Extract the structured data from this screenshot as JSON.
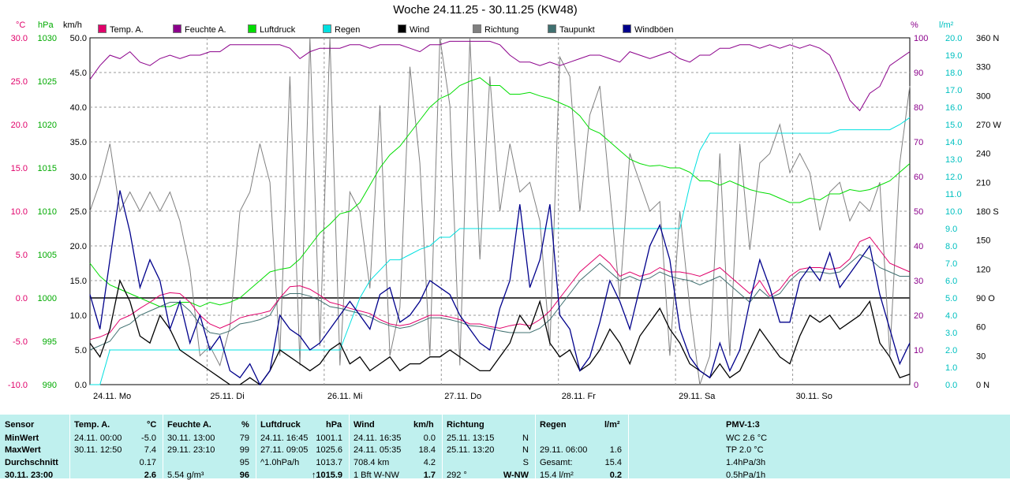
{
  "title": "Woche 24.11.25 - 30.11.25 (KW48)",
  "legend": [
    {
      "label": "Temp. A.",
      "color": "#e0006a"
    },
    {
      "label": "Feuchte A.",
      "color": "#8b008b"
    },
    {
      "label": "Luftdruck",
      "color": "#00dd00"
    },
    {
      "label": "Regen",
      "color": "#00e0e0"
    },
    {
      "label": "Wind",
      "color": "#000000"
    },
    {
      "label": "Richtung",
      "color": "#808080"
    },
    {
      "label": "Taupunkt",
      "color": "#407070"
    },
    {
      "label": "Windböen",
      "color": "#00008b"
    }
  ],
  "units": {
    "temp": "°C",
    "press": "hPa",
    "wind": "km/h",
    "hum": "%",
    "rain": "l/m²"
  },
  "chart_data": {
    "type": "line",
    "x_labels": [
      "24.11. Mo",
      "25.11. Di",
      "26.11. Mi",
      "27.11. Do",
      "28.11. Fr",
      "29.11. Sa",
      "30.11. So"
    ],
    "axes": {
      "temp": {
        "label": "°C",
        "range": [
          -10,
          30
        ],
        "ticks": [
          "30.0",
          "25.0",
          "20.0",
          "15.0",
          "10.0",
          "5.0",
          "0.0",
          "-5.0",
          "-10.0"
        ],
        "color": "#e0006a"
      },
      "press": {
        "label": "hPa",
        "range": [
          990,
          1030
        ],
        "ticks": [
          "1030",
          "1025",
          "1020",
          "1015",
          "1010",
          "1005",
          "1000",
          "995",
          "990"
        ],
        "color": "#00aa00"
      },
      "wind": {
        "label": "km/h",
        "range": [
          0,
          50
        ],
        "ticks": [
          "50.0",
          "45.0",
          "40.0",
          "35.0",
          "30.0",
          "25.0",
          "20.0",
          "15.0",
          "10.0",
          "5.0",
          "0.0"
        ],
        "color": "#000000"
      },
      "hum": {
        "label": "%",
        "range": [
          0,
          100
        ],
        "ticks": [
          "100",
          "90",
          "80",
          "70",
          "60",
          "50",
          "40",
          "30",
          "20",
          "10",
          "0"
        ],
        "color": "#8b008b"
      },
      "rain": {
        "label": "l/m²",
        "range": [
          0,
          20
        ],
        "ticks": [
          "20.0",
          "19.0",
          "18.0",
          "17.0",
          "16.0",
          "15.0",
          "14.0",
          "13.0",
          "12.0",
          "11.0",
          "10.0",
          "9.0",
          "8.0",
          "7.0",
          "6.0",
          "5.0",
          "4.0",
          "3.0",
          "2.0",
          "1.0",
          "0.0"
        ],
        "color": "#00c0c0"
      },
      "dir": {
        "range": [
          0,
          360
        ],
        "ticks": [
          "360 N",
          "330",
          "300",
          "270 W",
          "240",
          "210",
          "180 S",
          "150",
          "120",
          "90 O",
          "60",
          "30",
          "0 N"
        ]
      }
    },
    "series": [
      {
        "name": "Temp. A.",
        "axis": "temp",
        "color": "#e0006a",
        "values": [
          -4.8,
          -4.5,
          -4,
          -2.5,
          -2,
          -1.2,
          -0.5,
          0.3,
          0.6,
          0.5,
          -0.5,
          -2,
          -3,
          -3.5,
          -3,
          -2.3,
          -2,
          -1.8,
          -1.5,
          0,
          1.3,
          1.4,
          1,
          0.3,
          -0.5,
          -0.8,
          -1.2,
          -1.5,
          -1.8,
          -2.5,
          -3,
          -3.2,
          -3,
          -2.5,
          -2,
          -2,
          -2.2,
          -2.5,
          -3,
          -3,
          -3.3,
          -3.5,
          -3.2,
          -3,
          -3.2,
          -2.5,
          -1.5,
          0,
          1.5,
          3,
          4,
          5,
          4,
          2.5,
          3,
          2.5,
          2.8,
          3.5,
          3,
          3,
          2.8,
          2.5,
          3,
          3.5,
          2.5,
          1.5,
          0.5,
          2,
          0.2,
          1,
          2.5,
          3.3,
          3.5,
          3.5,
          3.3,
          3.5,
          4.5,
          6.5,
          7,
          5.5,
          4,
          3.5,
          3
        ]
      },
      {
        "name": "Feuchte A.",
        "axis": "hum",
        "color": "#8b008b",
        "values": [
          88,
          92,
          95,
          94,
          96,
          93,
          92,
          94,
          95,
          94,
          95,
          95,
          96,
          96,
          98,
          98,
          98,
          98,
          98,
          98,
          97,
          94,
          96,
          97,
          97,
          97,
          98,
          98,
          97,
          98,
          98,
          98,
          97,
          96,
          98,
          98,
          99,
          99,
          99,
          99,
          99,
          98,
          95,
          93,
          93,
          92,
          93,
          92,
          93,
          94,
          95,
          95,
          94,
          93,
          96,
          95,
          94,
          95,
          96,
          94,
          93,
          95,
          95,
          97,
          97,
          98,
          98,
          97,
          98,
          97,
          98,
          97,
          98,
          97,
          95,
          89,
          82,
          79,
          84,
          86,
          92,
          94,
          96
        ]
      },
      {
        "name": "Luftdruck",
        "axis": "press",
        "color": "#00dd00",
        "values": [
          1004,
          1002.5,
          1001.5,
          1001,
          1000.5,
          1000,
          999.5,
          999,
          999,
          999.5,
          999.5,
          999,
          999.5,
          999.2,
          999.5,
          1000,
          1001,
          1002,
          1003,
          1003.3,
          1003.5,
          1004.5,
          1006,
          1007.5,
          1008.5,
          1009.7,
          1010,
          1011,
          1013,
          1015,
          1016.5,
          1017.5,
          1019,
          1020.5,
          1022,
          1023,
          1023.5,
          1024.5,
          1025,
          1025.4,
          1024.5,
          1024.5,
          1023.5,
          1023.5,
          1023.7,
          1023.3,
          1023,
          1022.5,
          1022,
          1021,
          1019.5,
          1019,
          1018,
          1017,
          1016,
          1015.5,
          1015.2,
          1015.3,
          1015,
          1015,
          1014.5,
          1013.5,
          1013.5,
          1013,
          1013.5,
          1013,
          1012.5,
          1012.2,
          1012,
          1011.5,
          1011,
          1011,
          1011.5,
          1011.3,
          1012,
          1012,
          1012.5,
          1012.3,
          1012.5,
          1013,
          1013.5,
          1014.5,
          1015.5
        ]
      },
      {
        "name": "Regen",
        "axis": "rain",
        "color": "#00e0e0",
        "values": [
          0,
          0,
          2,
          2,
          2,
          2,
          2,
          2,
          2,
          2,
          2,
          2,
          2,
          2,
          2,
          2,
          2,
          2,
          2,
          2,
          2,
          2,
          2,
          2,
          2,
          2,
          3.5,
          5,
          6,
          6.6,
          7.2,
          7.2,
          7.5,
          7.8,
          8,
          8.5,
          8.5,
          9,
          9,
          9,
          9,
          9,
          9,
          9,
          9,
          9,
          9,
          9,
          9,
          9,
          9,
          9,
          9,
          9,
          9,
          9,
          9,
          9,
          9,
          9,
          11.5,
          13.5,
          14.5,
          14.5,
          14.5,
          14.5,
          14.5,
          14.5,
          14.5,
          14.5,
          14.5,
          14.5,
          14.5,
          14.5,
          14.5,
          14.7,
          14.7,
          14.7,
          14.7,
          14.7,
          14.7,
          15,
          15.4
        ]
      },
      {
        "name": "Wind",
        "axis": "wind",
        "color": "#000000",
        "values": [
          6,
          4,
          8,
          15,
          12,
          7,
          6,
          10,
          8,
          5,
          4,
          3,
          2,
          1,
          0,
          0,
          1,
          0,
          2,
          5,
          4,
          3,
          2,
          3,
          5,
          6,
          3,
          4,
          2,
          3,
          4,
          2,
          3,
          3,
          4,
          4,
          5,
          4,
          3,
          2,
          2,
          4,
          6,
          10,
          8,
          12,
          6,
          4,
          5,
          2,
          3,
          5,
          8,
          6,
          3,
          7,
          9,
          11,
          8,
          6,
          3,
          2,
          1,
          3,
          1,
          2,
          5,
          8,
          6,
          4,
          3,
          7,
          10,
          9,
          10,
          8,
          9,
          10,
          12,
          6,
          4,
          1,
          1.5
        ]
      },
      {
        "name": "Richtung",
        "axis": "dir",
        "color": "#808080",
        "values": [
          180,
          210,
          250,
          180,
          200,
          180,
          200,
          180,
          200,
          170,
          120,
          30,
          40,
          20,
          60,
          180,
          200,
          250,
          210,
          30,
          320,
          20,
          360,
          40,
          360,
          20,
          200,
          180,
          100,
          290,
          30,
          80,
          330,
          230,
          30,
          360,
          290,
          20,
          360,
          130,
          320,
          180,
          250,
          200,
          210,
          170,
          40,
          340,
          320,
          180,
          280,
          310,
          200,
          90,
          240,
          210,
          180,
          190,
          30,
          180,
          80,
          0,
          30,
          240,
          30,
          250,
          140,
          230,
          240,
          270,
          220,
          240,
          220,
          160,
          200,
          210,
          170,
          190,
          180,
          210,
          30,
          230,
          310
        ]
      },
      {
        "name": "Taupunkt",
        "axis": "temp",
        "color": "#407070",
        "values": [
          -6,
          -5.5,
          -5,
          -3.5,
          -3,
          -2,
          -1.5,
          -1,
          -0.5,
          -0.5,
          -1.5,
          -3,
          -4,
          -4.2,
          -3.8,
          -3,
          -2.8,
          -2.5,
          -2,
          0,
          0.5,
          0.5,
          0.2,
          -0.3,
          -1,
          -1.2,
          -1.5,
          -1.8,
          -2.2,
          -2.8,
          -3.2,
          -3.5,
          -3.3,
          -2.8,
          -2.3,
          -2.3,
          -2.5,
          -2.8,
          -3.2,
          -3.3,
          -3.5,
          -3.8,
          -4,
          -4,
          -4,
          -3.5,
          -2.5,
          -1,
          0.5,
          2,
          3,
          4,
          3,
          2,
          2.5,
          2,
          2.3,
          3,
          2.5,
          2.2,
          2,
          1.5,
          2,
          2.5,
          1.5,
          0.5,
          -0.5,
          1,
          0,
          0.5,
          2,
          3,
          3,
          3,
          2.8,
          3,
          4,
          5,
          4.5,
          3.5,
          3,
          2.5,
          2.5
        ]
      },
      {
        "name": "Windböen",
        "axis": "wind",
        "color": "#00008b",
        "values": [
          13,
          8,
          18,
          28,
          22,
          14,
          18,
          15,
          8,
          12,
          6,
          10,
          5,
          7,
          2,
          1,
          3,
          0,
          2,
          10,
          8,
          7,
          5,
          6,
          8,
          10,
          12,
          10,
          8,
          13,
          14,
          9,
          10,
          12,
          15,
          14,
          13,
          10,
          8,
          6,
          5,
          11,
          15,
          26,
          14,
          18,
          26,
          10,
          8,
          2,
          4,
          9,
          15,
          12,
          8,
          14,
          20,
          23,
          18,
          8,
          4,
          2,
          1,
          6,
          2,
          5,
          12,
          18,
          14,
          9,
          9,
          15,
          17,
          15,
          19,
          14,
          16,
          18,
          20,
          13,
          8,
          3,
          6
        ]
      }
    ]
  },
  "stats": {
    "headers": {
      "sensor": "Sensor",
      "temp": "Temp. A.",
      "temp_u": "°C",
      "hum": "Feuchte A.",
      "hum_u": "%",
      "press": "Luftdruck",
      "press_u": "hPa",
      "wind": "Wind",
      "wind_u": "km/h",
      "dir": "Richtung",
      "rain": "Regen",
      "rain_u": "l/m²",
      "pmv": "PMV-1:3"
    },
    "rows": [
      "MinWert",
      "MaxWert",
      "Durchschnitt",
      "30.11. 23:00"
    ],
    "temp": [
      [
        "24.11.  00:00",
        "-5.0"
      ],
      [
        "30.11.  12:50",
        "7.4"
      ],
      [
        "",
        "0.17"
      ],
      [
        "",
        "2.6"
      ]
    ],
    "hum": [
      [
        "30.11.  13:00",
        "79"
      ],
      [
        "29.11.  23:10",
        "99"
      ],
      [
        "",
        "95"
      ],
      [
        "5.54 g/m³",
        "96"
      ]
    ],
    "press": [
      [
        "24.11.  16:45",
        "1001.1"
      ],
      [
        "27.11.  09:05",
        "1025.6"
      ],
      [
        "^1.0hPa/h",
        "1013.7"
      ],
      [
        "",
        "↑1015.9"
      ]
    ],
    "wind": [
      [
        "24.11.  16:35",
        "0.0"
      ],
      [
        "24.11.  05:35",
        "18.4"
      ],
      [
        "708.4 km",
        "4.2"
      ],
      [
        "1 Bft W-NW",
        "1.7"
      ]
    ],
    "dir": [
      [
        "25.11.  13:15",
        "N"
      ],
      [
        "25.11.  13:20",
        "N"
      ],
      [
        "",
        "S"
      ],
      [
        "292 °",
        "W-NW"
      ]
    ],
    "rain": [
      [
        "",
        ""
      ],
      [
        "29.11.  06:00",
        "1.6"
      ],
      [
        "Gesamt:",
        "15.4"
      ],
      [
        "15.4 l/m²",
        "0.2"
      ]
    ],
    "pmv": [
      "WC 2.6 °C",
      "TP 2.0 °C",
      "1.4hPa/3h",
      "0.5hPa/1h"
    ]
  }
}
